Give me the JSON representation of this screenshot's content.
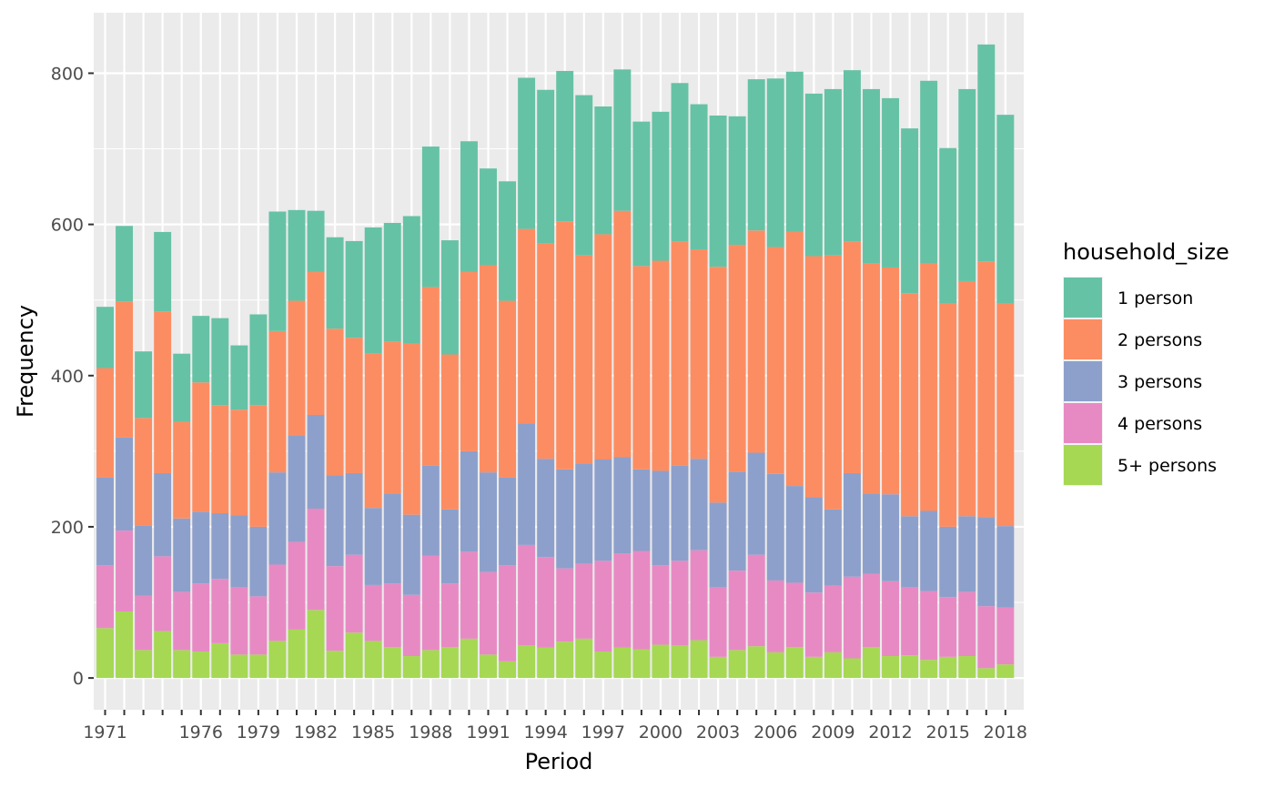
{
  "chart_data": {
    "type": "bar",
    "stacked": true,
    "xlabel": "Period",
    "ylabel": "Frequency",
    "ylim": [
      -42,
      880
    ],
    "yticks": [
      0,
      200,
      400,
      600,
      800
    ],
    "x": [
      1971,
      1972,
      1973,
      1974,
      1975,
      1976,
      1977,
      1978,
      1979,
      1980,
      1981,
      1982,
      1983,
      1984,
      1985,
      1986,
      1987,
      1988,
      1989,
      1990,
      1991,
      1992,
      1993,
      1994,
      1995,
      1996,
      1997,
      1998,
      1999,
      2000,
      2001,
      2002,
      2003,
      2004,
      2005,
      2006,
      2007,
      2008,
      2009,
      2010,
      2011,
      2012,
      2013,
      2014,
      2015,
      2016,
      2017,
      2018
    ],
    "xtick_labels": [
      "1971",
      "",
      "",
      "",
      "",
      "1976",
      "",
      "",
      "1979",
      "",
      "",
      "1982",
      "",
      "",
      "1985",
      "",
      "",
      "1988",
      "",
      "",
      "1991",
      "",
      "",
      "1994",
      "",
      "",
      "1997",
      "",
      "",
      "2000",
      "",
      "",
      "2003",
      "",
      "",
      "2006",
      "",
      "",
      "2009",
      "",
      "",
      "2012",
      "",
      "",
      "2015",
      "",
      "",
      "2018"
    ],
    "grid": true,
    "legend": {
      "title": "household_size",
      "position": "right"
    },
    "series": [
      {
        "name": "5+ persons",
        "color": "#A6D854",
        "values": [
          66,
          88,
          37,
          62,
          37,
          35,
          46,
          31,
          31,
          49,
          64,
          90,
          36,
          60,
          49,
          41,
          29,
          37,
          41,
          52,
          31,
          22,
          43,
          40,
          48,
          52,
          35,
          40,
          38,
          44,
          43,
          50,
          28,
          37,
          42,
          34,
          41,
          28,
          34,
          26,
          41,
          29,
          30,
          24,
          28,
          29,
          13,
          18
        ]
      },
      {
        "name": "4 persons",
        "color": "#E78AC3",
        "values": [
          83,
          107,
          72,
          99,
          77,
          90,
          85,
          89,
          77,
          101,
          116,
          134,
          112,
          103,
          74,
          84,
          81,
          125,
          84,
          115,
          109,
          127,
          133,
          120,
          97,
          99,
          120,
          125,
          130,
          105,
          112,
          119,
          92,
          105,
          121,
          95,
          85,
          85,
          88,
          108,
          97,
          99,
          90,
          91,
          79,
          85,
          82,
          75
        ]
      },
      {
        "name": "3 persons",
        "color": "#8DA0CB",
        "values": [
          116,
          123,
          93,
          110,
          97,
          95,
          87,
          95,
          92,
          122,
          141,
          124,
          120,
          108,
          102,
          119,
          106,
          119,
          98,
          133,
          132,
          116,
          161,
          130,
          131,
          133,
          134,
          127,
          108,
          125,
          126,
          121,
          112,
          131,
          135,
          141,
          128,
          126,
          101,
          137,
          106,
          115,
          94,
          106,
          93,
          100,
          118,
          108
        ]
      },
      {
        "name": "2 persons",
        "color": "#FC8D62",
        "values": [
          145,
          180,
          142,
          214,
          128,
          171,
          143,
          140,
          161,
          187,
          178,
          189,
          194,
          179,
          204,
          201,
          226,
          236,
          205,
          237,
          274,
          234,
          257,
          285,
          328,
          275,
          298,
          326,
          269,
          278,
          296,
          277,
          312,
          300,
          294,
          300,
          336,
          319,
          336,
          306,
          304,
          300,
          295,
          328,
          296,
          311,
          338,
          295
        ]
      },
      {
        "name": "1 person",
        "color": "#66C2A5",
        "values": [
          81,
          100,
          88,
          105,
          90,
          88,
          115,
          85,
          120,
          158,
          120,
          81,
          121,
          128,
          167,
          157,
          169,
          186,
          151,
          173,
          128,
          158,
          200,
          203,
          199,
          212,
          169,
          187,
          191,
          197,
          210,
          192,
          200,
          170,
          200,
          223,
          212,
          215,
          220,
          227,
          231,
          224,
          218,
          241,
          205,
          254,
          287,
          249
        ]
      }
    ]
  }
}
